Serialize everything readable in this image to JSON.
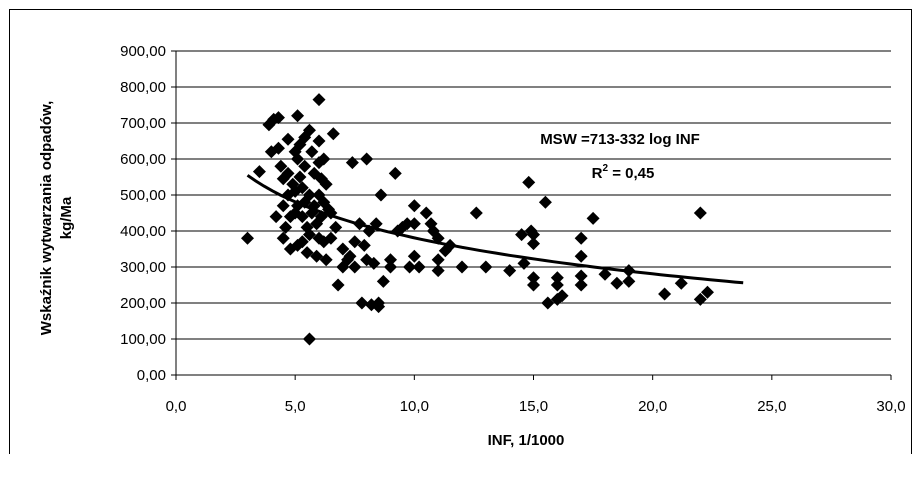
{
  "chart_data": {
    "type": "scatter",
    "xlabel": "INF, 1/1000",
    "ylabel_line1": "Wskaźnik wytwarzania odpadów,",
    "ylabel_line2": "kg/Ma",
    "xlim": [
      0,
      30
    ],
    "ylim": [
      0,
      900
    ],
    "x_ticks": [
      0,
      5,
      10,
      15,
      20,
      25,
      30
    ],
    "y_ticks": [
      0,
      100,
      200,
      300,
      400,
      500,
      600,
      700,
      800,
      900
    ],
    "x_tick_labels": [
      "0,0",
      "5,0",
      "10,0",
      "15,0",
      "20,0",
      "25,0",
      "30,0"
    ],
    "y_tick_labels": [
      "0,00",
      "100,00",
      "200,00",
      "300,00",
      "400,00",
      "500,00",
      "600,00",
      "700,00",
      "800,00",
      "900,00"
    ],
    "grid": "horizontal",
    "equation": "MSW =713-332 log INF",
    "r2_prefix": "R",
    "r2_sup": "2",
    "r2_suffix": " = 0,45",
    "trendline": {
      "a": 713,
      "b": -332,
      "x_from": 3.0,
      "x_to": 23.8
    },
    "points": [
      [
        3.0,
        380
      ],
      [
        3.5,
        565
      ],
      [
        3.9,
        695
      ],
      [
        4.0,
        620
      ],
      [
        4.1,
        710
      ],
      [
        4.2,
        440
      ],
      [
        4.3,
        715
      ],
      [
        4.3,
        630
      ],
      [
        4.4,
        580
      ],
      [
        4.5,
        545
      ],
      [
        4.5,
        470
      ],
      [
        4.5,
        380
      ],
      [
        4.6,
        410
      ],
      [
        4.7,
        655
      ],
      [
        4.7,
        560
      ],
      [
        4.7,
        500
      ],
      [
        4.8,
        350
      ],
      [
        4.8,
        440
      ],
      [
        4.9,
        530
      ],
      [
        5.0,
        620
      ],
      [
        5.0,
        510
      ],
      [
        5.0,
        450
      ],
      [
        5.1,
        720
      ],
      [
        5.1,
        600
      ],
      [
        5.1,
        470
      ],
      [
        5.1,
        360
      ],
      [
        5.2,
        640
      ],
      [
        5.2,
        550
      ],
      [
        5.3,
        520
      ],
      [
        5.3,
        440
      ],
      [
        5.3,
        370
      ],
      [
        5.4,
        660
      ],
      [
        5.4,
        580
      ],
      [
        5.4,
        480
      ],
      [
        5.5,
        410
      ],
      [
        5.5,
        340
      ],
      [
        5.6,
        680
      ],
      [
        5.6,
        500
      ],
      [
        5.6,
        390
      ],
      [
        5.6,
        100
      ],
      [
        5.7,
        620
      ],
      [
        5.7,
        450
      ],
      [
        5.8,
        560
      ],
      [
        5.8,
        470
      ],
      [
        5.9,
        420
      ],
      [
        5.9,
        330
      ],
      [
        6.0,
        765
      ],
      [
        6.0,
        650
      ],
      [
        6.0,
        590
      ],
      [
        6.0,
        500
      ],
      [
        6.0,
        380
      ],
      [
        6.1,
        545
      ],
      [
        6.1,
        440
      ],
      [
        6.2,
        600
      ],
      [
        6.2,
        480
      ],
      [
        6.2,
        370
      ],
      [
        6.3,
        530
      ],
      [
        6.3,
        320
      ],
      [
        6.4,
        460
      ],
      [
        6.5,
        450
      ],
      [
        6.5,
        380
      ],
      [
        6.6,
        670
      ],
      [
        6.7,
        410
      ],
      [
        6.8,
        250
      ],
      [
        7.0,
        350
      ],
      [
        7.0,
        300
      ],
      [
        7.2,
        320
      ],
      [
        7.3,
        330
      ],
      [
        7.4,
        590
      ],
      [
        7.5,
        370
      ],
      [
        7.5,
        300
      ],
      [
        7.7,
        420
      ],
      [
        7.8,
        200
      ],
      [
        7.9,
        360
      ],
      [
        8.0,
        600
      ],
      [
        8.0,
        320
      ],
      [
        8.1,
        400
      ],
      [
        8.2,
        195
      ],
      [
        8.3,
        310
      ],
      [
        8.4,
        420
      ],
      [
        8.5,
        200
      ],
      [
        8.5,
        190
      ],
      [
        8.6,
        500
      ],
      [
        8.7,
        260
      ],
      [
        9.0,
        320
      ],
      [
        9.0,
        300
      ],
      [
        9.2,
        560
      ],
      [
        9.3,
        400
      ],
      [
        9.5,
        410
      ],
      [
        9.7,
        420
      ],
      [
        9.8,
        300
      ],
      [
        10.0,
        470
      ],
      [
        10.0,
        420
      ],
      [
        10.0,
        330
      ],
      [
        10.2,
        300
      ],
      [
        10.5,
        450
      ],
      [
        10.7,
        420
      ],
      [
        10.8,
        400
      ],
      [
        11.0,
        380
      ],
      [
        11.0,
        320
      ],
      [
        11.0,
        290
      ],
      [
        11.3,
        345
      ],
      [
        11.5,
        360
      ],
      [
        12.0,
        300
      ],
      [
        12.6,
        450
      ],
      [
        13.0,
        300
      ],
      [
        14.0,
        290
      ],
      [
        14.5,
        390
      ],
      [
        14.6,
        310
      ],
      [
        14.8,
        535
      ],
      [
        14.9,
        400
      ],
      [
        15.0,
        365
      ],
      [
        15.0,
        390
      ],
      [
        15.0,
        270
      ],
      [
        15.0,
        250
      ],
      [
        15.5,
        480
      ],
      [
        15.6,
        200
      ],
      [
        16.0,
        270
      ],
      [
        16.0,
        250
      ],
      [
        16.0,
        210
      ],
      [
        16.2,
        220
      ],
      [
        17.0,
        380
      ],
      [
        17.0,
        330
      ],
      [
        17.0,
        275
      ],
      [
        17.0,
        250
      ],
      [
        17.5,
        435
      ],
      [
        18.0,
        280
      ],
      [
        18.5,
        255
      ],
      [
        19.0,
        290
      ],
      [
        19.0,
        260
      ],
      [
        20.5,
        225
      ],
      [
        21.2,
        255
      ],
      [
        22.0,
        450
      ],
      [
        22.0,
        210
      ],
      [
        22.3,
        230
      ]
    ]
  }
}
